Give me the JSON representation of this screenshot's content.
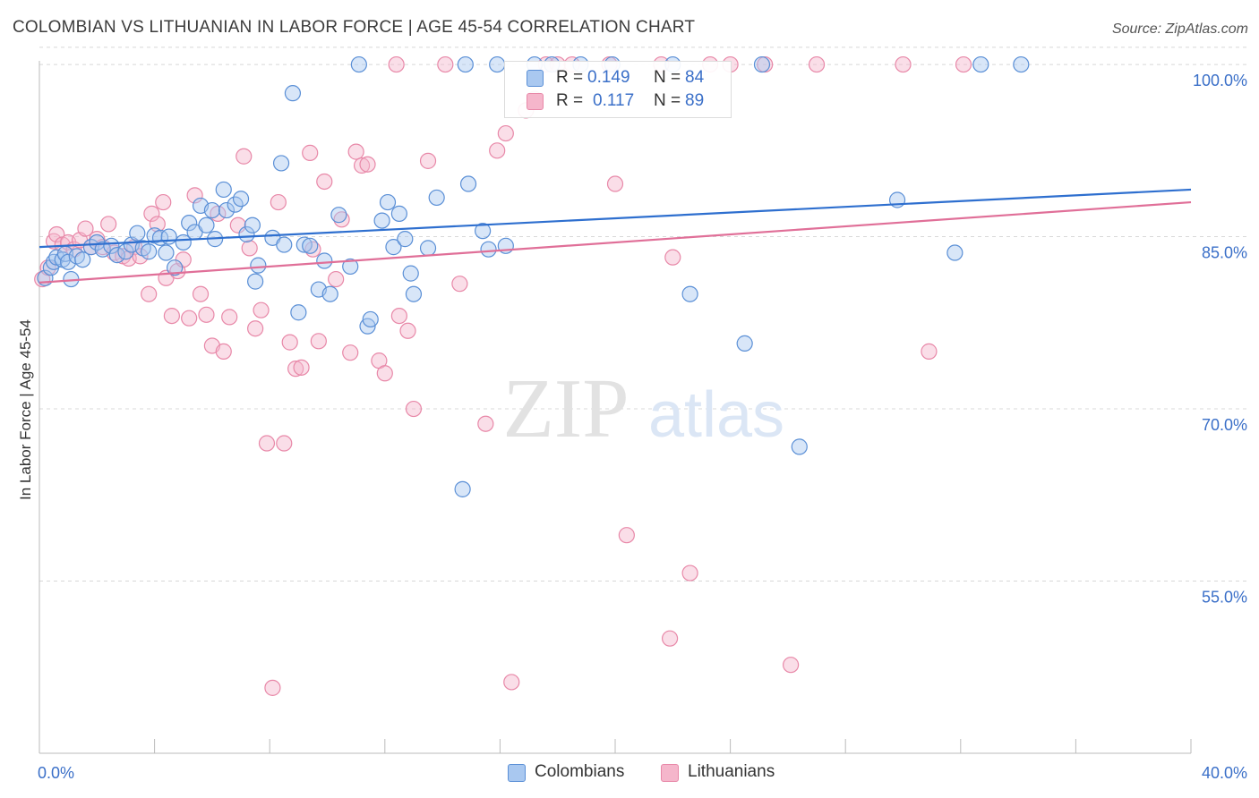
{
  "header": {
    "title": "COLOMBIAN VS LITHUANIAN IN LABOR FORCE | AGE 45-54 CORRELATION CHART",
    "source": "Source: ZipAtlas.com"
  },
  "watermark": {
    "part1": "ZIP",
    "part2": "atlas"
  },
  "legend_top": {
    "rows": [
      {
        "r_label": "R = ",
        "r_value": "0.149",
        "n_label": "N = ",
        "n_value": "84"
      },
      {
        "r_label": "R = ",
        "r_value": "0.117",
        "n_label": "N = ",
        "n_value": "89"
      }
    ]
  },
  "legend_bottom": {
    "items": [
      "Colombians",
      "Lithuanians"
    ]
  },
  "colors": {
    "colombian_fill": "#a9c8f0",
    "colombian_stroke": "#5a8fd6",
    "colombian_line": "#2e6fcf",
    "lithuanian_fill": "#f5b6cb",
    "lithuanian_stroke": "#e888a8",
    "lithuanian_line": "#e06f98",
    "tick_label": "#3a6fc8",
    "grid": "#d8d8d8"
  },
  "chart_data": {
    "type": "scatter",
    "title": "COLOMBIAN VS LITHUANIAN IN LABOR FORCE | AGE 45-54 CORRELATION CHART",
    "xlabel": "",
    "ylabel": "In Labor Force | Age 45-54",
    "xlim": [
      0,
      40
    ],
    "ylim": [
      40,
      102.5
    ],
    "x_tick_labels": [
      {
        "value": 0,
        "label": "0.0%"
      },
      {
        "value": 40,
        "label": "40.0%"
      }
    ],
    "y_tick_labels": [
      {
        "value": 100,
        "label": "100.0%"
      },
      {
        "value": 85,
        "label": "85.0%"
      },
      {
        "value": 70,
        "label": "70.0%"
      },
      {
        "value": 55,
        "label": "55.0%"
      }
    ],
    "grid": "horizontal dashed",
    "legend": "bottom-center",
    "series": [
      {
        "name": "Colombians",
        "r": 0.149,
        "n": 84,
        "trend": [
          [
            0,
            84.1
          ],
          [
            40,
            89.1
          ]
        ],
        "points": [
          [
            0.2,
            81.4
          ],
          [
            0.4,
            82.3
          ],
          [
            0.5,
            82.8
          ],
          [
            0.6,
            83.2
          ],
          [
            0.8,
            83.0
          ],
          [
            0.9,
            83.5
          ],
          [
            1.0,
            82.8
          ],
          [
            1.1,
            81.3
          ],
          [
            1.3,
            83.3
          ],
          [
            1.5,
            83.0
          ],
          [
            1.8,
            84.1
          ],
          [
            2.0,
            84.5
          ],
          [
            2.2,
            83.9
          ],
          [
            2.5,
            84.2
          ],
          [
            2.7,
            83.4
          ],
          [
            3.0,
            83.7
          ],
          [
            3.2,
            84.3
          ],
          [
            3.4,
            85.3
          ],
          [
            3.6,
            84.0
          ],
          [
            3.8,
            83.7
          ],
          [
            4.0,
            85.1
          ],
          [
            4.2,
            84.9
          ],
          [
            4.4,
            83.6
          ],
          [
            4.5,
            85.0
          ],
          [
            4.7,
            82.3
          ],
          [
            5.0,
            84.5
          ],
          [
            5.2,
            86.2
          ],
          [
            5.4,
            85.4
          ],
          [
            5.6,
            87.7
          ],
          [
            5.8,
            86.0
          ],
          [
            6.0,
            87.3
          ],
          [
            6.1,
            84.8
          ],
          [
            6.4,
            89.1
          ],
          [
            6.5,
            87.3
          ],
          [
            6.8,
            87.8
          ],
          [
            7.0,
            88.3
          ],
          [
            7.2,
            85.2
          ],
          [
            7.4,
            86.0
          ],
          [
            7.5,
            81.1
          ],
          [
            7.6,
            82.5
          ],
          [
            8.1,
            84.9
          ],
          [
            8.4,
            91.4
          ],
          [
            8.5,
            84.3
          ],
          [
            8.8,
            97.5
          ],
          [
            9.0,
            78.4
          ],
          [
            9.2,
            84.3
          ],
          [
            9.4,
            84.2
          ],
          [
            9.7,
            80.4
          ],
          [
            9.9,
            82.9
          ],
          [
            10.1,
            80.0
          ],
          [
            10.4,
            86.9
          ],
          [
            10.8,
            82.4
          ],
          [
            11.1,
            100.0
          ],
          [
            11.4,
            77.2
          ],
          [
            11.5,
            77.8
          ],
          [
            11.9,
            86.4
          ],
          [
            12.1,
            88.0
          ],
          [
            12.3,
            84.1
          ],
          [
            12.5,
            87.0
          ],
          [
            12.7,
            84.8
          ],
          [
            12.9,
            81.8
          ],
          [
            13.0,
            80.0
          ],
          [
            13.5,
            84.0
          ],
          [
            13.8,
            88.4
          ],
          [
            14.7,
            63.0
          ],
          [
            14.8,
            100.0
          ],
          [
            14.9,
            89.6
          ],
          [
            15.4,
            85.5
          ],
          [
            15.6,
            83.9
          ],
          [
            15.9,
            100.0
          ],
          [
            16.2,
            84.2
          ],
          [
            17.2,
            100.0
          ],
          [
            17.8,
            100.0
          ],
          [
            18.8,
            100.0
          ],
          [
            19.9,
            100.0
          ],
          [
            22.0,
            100.0
          ],
          [
            22.6,
            80.0
          ],
          [
            24.5,
            75.7
          ],
          [
            25.1,
            100.0
          ],
          [
            26.4,
            66.7
          ],
          [
            29.8,
            88.2
          ],
          [
            31.8,
            83.6
          ],
          [
            32.7,
            100.0
          ],
          [
            34.1,
            100.0
          ]
        ]
      },
      {
        "name": "Lithuanians",
        "r": 0.117,
        "n": 89,
        "trend": [
          [
            0,
            81.0
          ],
          [
            40,
            88.0
          ]
        ],
        "points": [
          [
            0.1,
            81.3
          ],
          [
            0.3,
            82.3
          ],
          [
            0.5,
            84.6
          ],
          [
            0.6,
            85.2
          ],
          [
            0.8,
            84.3
          ],
          [
            1.0,
            84.5
          ],
          [
            1.2,
            83.9
          ],
          [
            1.4,
            84.7
          ],
          [
            1.6,
            85.7
          ],
          [
            1.8,
            84.1
          ],
          [
            2.0,
            84.8
          ],
          [
            2.2,
            84.1
          ],
          [
            2.4,
            86.1
          ],
          [
            2.6,
            83.6
          ],
          [
            2.9,
            83.3
          ],
          [
            3.1,
            83.1
          ],
          [
            3.3,
            84.1
          ],
          [
            3.5,
            83.3
          ],
          [
            3.8,
            80.0
          ],
          [
            3.9,
            87.0
          ],
          [
            4.1,
            86.1
          ],
          [
            4.3,
            88.0
          ],
          [
            4.4,
            81.4
          ],
          [
            4.6,
            78.1
          ],
          [
            4.8,
            82.0
          ],
          [
            5.0,
            83.0
          ],
          [
            5.2,
            77.9
          ],
          [
            5.4,
            88.6
          ],
          [
            5.6,
            80.0
          ],
          [
            5.8,
            78.2
          ],
          [
            6.0,
            75.5
          ],
          [
            6.2,
            87.0
          ],
          [
            6.4,
            75.0
          ],
          [
            6.6,
            78.0
          ],
          [
            6.9,
            86.0
          ],
          [
            7.1,
            92.0
          ],
          [
            7.3,
            84.0
          ],
          [
            7.5,
            77.0
          ],
          [
            7.7,
            78.6
          ],
          [
            7.9,
            67.0
          ],
          [
            8.1,
            45.7
          ],
          [
            8.3,
            88.0
          ],
          [
            8.5,
            67.0
          ],
          [
            8.7,
            75.8
          ],
          [
            8.9,
            73.5
          ],
          [
            9.1,
            73.6
          ],
          [
            9.4,
            92.3
          ],
          [
            9.5,
            83.9
          ],
          [
            9.7,
            75.9
          ],
          [
            9.9,
            89.8
          ],
          [
            10.3,
            81.3
          ],
          [
            10.5,
            86.5
          ],
          [
            10.8,
            74.9
          ],
          [
            11.0,
            92.4
          ],
          [
            11.2,
            91.2
          ],
          [
            11.4,
            91.3
          ],
          [
            11.8,
            74.2
          ],
          [
            12.0,
            73.1
          ],
          [
            12.4,
            100.0
          ],
          [
            12.5,
            78.1
          ],
          [
            12.8,
            76.8
          ],
          [
            13.0,
            70.0
          ],
          [
            13.5,
            91.6
          ],
          [
            14.1,
            100.0
          ],
          [
            14.6,
            80.9
          ],
          [
            15.5,
            68.7
          ],
          [
            15.9,
            92.5
          ],
          [
            16.2,
            94.0
          ],
          [
            16.4,
            46.2
          ],
          [
            16.9,
            96.0
          ],
          [
            17.2,
            97.0
          ],
          [
            17.6,
            100.0
          ],
          [
            18.0,
            100.0
          ],
          [
            18.5,
            100.0
          ],
          [
            19.8,
            100.0
          ],
          [
            20.0,
            89.6
          ],
          [
            20.4,
            59.0
          ],
          [
            21.6,
            100.0
          ],
          [
            21.9,
            50.0
          ],
          [
            22.0,
            83.2
          ],
          [
            22.6,
            55.7
          ],
          [
            23.3,
            100.0
          ],
          [
            24.0,
            100.0
          ],
          [
            25.2,
            100.0
          ],
          [
            26.1,
            47.7
          ],
          [
            27.0,
            100.0
          ],
          [
            30.0,
            100.0
          ],
          [
            30.9,
            75.0
          ],
          [
            32.1,
            100.0
          ]
        ]
      }
    ]
  }
}
